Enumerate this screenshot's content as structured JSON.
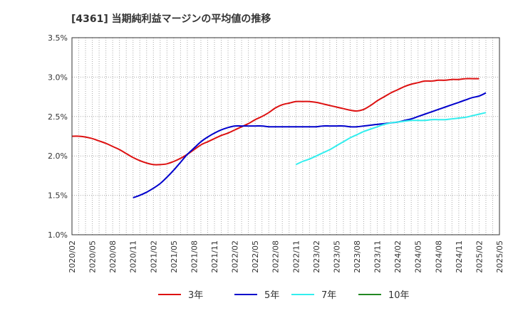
{
  "chart_data": {
    "type": "line",
    "title": "[4361]  当期純利益マージンの平均値の推移",
    "xlabel": "",
    "ylabel": "",
    "x_ticks": [
      "2020/02",
      "2020/05",
      "2020/08",
      "2020/11",
      "2021/02",
      "2021/05",
      "2021/08",
      "2021/11",
      "2022/02",
      "2022/05",
      "2022/08",
      "2022/11",
      "2023/02",
      "2023/05",
      "2023/08",
      "2023/11",
      "2024/02",
      "2024/05",
      "2024/08",
      "2024/11",
      "2025/02",
      "2025/05"
    ],
    "y_ticks": [
      "1.0%",
      "1.5%",
      "2.0%",
      "2.5%",
      "3.0%",
      "3.5%"
    ],
    "ylim": [
      1.0,
      3.5
    ],
    "grid": true,
    "legend_position": "bottom",
    "series": [
      {
        "name": "3年",
        "color": "#dd1111",
        "points": [
          [
            "2020/02",
            2.25
          ],
          [
            "2020/03",
            2.25
          ],
          [
            "2020/04",
            2.24
          ],
          [
            "2020/05",
            2.22
          ],
          [
            "2020/06",
            2.19
          ],
          [
            "2020/07",
            2.16
          ],
          [
            "2020/08",
            2.12
          ],
          [
            "2020/09",
            2.08
          ],
          [
            "2020/10",
            2.03
          ],
          [
            "2020/11",
            1.98
          ],
          [
            "2020/12",
            1.94
          ],
          [
            "2021/01",
            1.91
          ],
          [
            "2021/02",
            1.89
          ],
          [
            "2021/03",
            1.89
          ],
          [
            "2021/04",
            1.9
          ],
          [
            "2021/05",
            1.93
          ],
          [
            "2021/06",
            1.97
          ],
          [
            "2021/07",
            2.02
          ],
          [
            "2021/08",
            2.08
          ],
          [
            "2021/09",
            2.14
          ],
          [
            "2021/10",
            2.18
          ],
          [
            "2021/11",
            2.22
          ],
          [
            "2021/12",
            2.26
          ],
          [
            "2022/01",
            2.29
          ],
          [
            "2022/02",
            2.33
          ],
          [
            "2022/03",
            2.37
          ],
          [
            "2022/04",
            2.41
          ],
          [
            "2022/05",
            2.46
          ],
          [
            "2022/06",
            2.5
          ],
          [
            "2022/07",
            2.55
          ],
          [
            "2022/08",
            2.61
          ],
          [
            "2022/09",
            2.65
          ],
          [
            "2022/10",
            2.67
          ],
          [
            "2022/11",
            2.69
          ],
          [
            "2022/12",
            2.69
          ],
          [
            "2023/01",
            2.69
          ],
          [
            "2023/02",
            2.68
          ],
          [
            "2023/03",
            2.66
          ],
          [
            "2023/04",
            2.64
          ],
          [
            "2023/05",
            2.62
          ],
          [
            "2023/06",
            2.6
          ],
          [
            "2023/07",
            2.58
          ],
          [
            "2023/08",
            2.57
          ],
          [
            "2023/09",
            2.59
          ],
          [
            "2023/10",
            2.64
          ],
          [
            "2023/11",
            2.7
          ],
          [
            "2023/12",
            2.75
          ],
          [
            "2024/01",
            2.8
          ],
          [
            "2024/02",
            2.84
          ],
          [
            "2024/03",
            2.88
          ],
          [
            "2024/04",
            2.91
          ],
          [
            "2024/05",
            2.93
          ],
          [
            "2024/06",
            2.95
          ],
          [
            "2024/07",
            2.95
          ],
          [
            "2024/08",
            2.96
          ],
          [
            "2024/09",
            2.96
          ],
          [
            "2024/10",
            2.97
          ],
          [
            "2024/11",
            2.97
          ],
          [
            "2024/12",
            2.98
          ],
          [
            "2025/01",
            2.98
          ],
          [
            "2025/02",
            2.98
          ]
        ]
      },
      {
        "name": "5年",
        "color": "#0000cc",
        "points": [
          [
            "2020/11",
            1.47
          ],
          [
            "2020/12",
            1.5
          ],
          [
            "2021/01",
            1.54
          ],
          [
            "2021/02",
            1.59
          ],
          [
            "2021/03",
            1.65
          ],
          [
            "2021/04",
            1.73
          ],
          [
            "2021/05",
            1.82
          ],
          [
            "2021/06",
            1.92
          ],
          [
            "2021/07",
            2.02
          ],
          [
            "2021/08",
            2.1
          ],
          [
            "2021/09",
            2.18
          ],
          [
            "2021/10",
            2.24
          ],
          [
            "2021/11",
            2.29
          ],
          [
            "2021/12",
            2.33
          ],
          [
            "2022/01",
            2.36
          ],
          [
            "2022/02",
            2.38
          ],
          [
            "2022/03",
            2.38
          ],
          [
            "2022/04",
            2.38
          ],
          [
            "2022/05",
            2.38
          ],
          [
            "2022/06",
            2.38
          ],
          [
            "2022/07",
            2.37
          ],
          [
            "2022/08",
            2.37
          ],
          [
            "2022/09",
            2.37
          ],
          [
            "2022/10",
            2.37
          ],
          [
            "2022/11",
            2.37
          ],
          [
            "2022/12",
            2.37
          ],
          [
            "2023/01",
            2.37
          ],
          [
            "2023/02",
            2.37
          ],
          [
            "2023/03",
            2.38
          ],
          [
            "2023/04",
            2.38
          ],
          [
            "2023/05",
            2.38
          ],
          [
            "2023/06",
            2.38
          ],
          [
            "2023/07",
            2.37
          ],
          [
            "2023/08",
            2.37
          ],
          [
            "2023/09",
            2.38
          ],
          [
            "2023/10",
            2.39
          ],
          [
            "2023/11",
            2.4
          ],
          [
            "2023/12",
            2.41
          ],
          [
            "2024/01",
            2.42
          ],
          [
            "2024/02",
            2.43
          ],
          [
            "2024/03",
            2.45
          ],
          [
            "2024/04",
            2.47
          ],
          [
            "2024/05",
            2.5
          ],
          [
            "2024/06",
            2.53
          ],
          [
            "2024/07",
            2.56
          ],
          [
            "2024/08",
            2.59
          ],
          [
            "2024/09",
            2.62
          ],
          [
            "2024/10",
            2.65
          ],
          [
            "2024/11",
            2.68
          ],
          [
            "2024/12",
            2.71
          ],
          [
            "2025/01",
            2.74
          ],
          [
            "2025/02",
            2.76
          ],
          [
            "2025/03",
            2.8
          ]
        ]
      },
      {
        "name": "7年",
        "color": "#33eeee",
        "points": [
          [
            "2022/11",
            1.89
          ],
          [
            "2022/12",
            1.93
          ],
          [
            "2023/01",
            1.96
          ],
          [
            "2023/02",
            2.0
          ],
          [
            "2023/03",
            2.04
          ],
          [
            "2023/04",
            2.08
          ],
          [
            "2023/05",
            2.13
          ],
          [
            "2023/06",
            2.18
          ],
          [
            "2023/07",
            2.23
          ],
          [
            "2023/08",
            2.27
          ],
          [
            "2023/09",
            2.31
          ],
          [
            "2023/10",
            2.34
          ],
          [
            "2023/11",
            2.37
          ],
          [
            "2023/12",
            2.4
          ],
          [
            "2024/01",
            2.42
          ],
          [
            "2024/02",
            2.43
          ],
          [
            "2024/03",
            2.44
          ],
          [
            "2024/04",
            2.45
          ],
          [
            "2024/05",
            2.45
          ],
          [
            "2024/06",
            2.45
          ],
          [
            "2024/07",
            2.46
          ],
          [
            "2024/08",
            2.46
          ],
          [
            "2024/09",
            2.46
          ],
          [
            "2024/10",
            2.47
          ],
          [
            "2024/11",
            2.48
          ],
          [
            "2024/12",
            2.49
          ],
          [
            "2025/01",
            2.51
          ],
          [
            "2025/02",
            2.53
          ],
          [
            "2025/03",
            2.55
          ]
        ]
      },
      {
        "name": "10年",
        "color": "#228822",
        "points": []
      }
    ]
  }
}
